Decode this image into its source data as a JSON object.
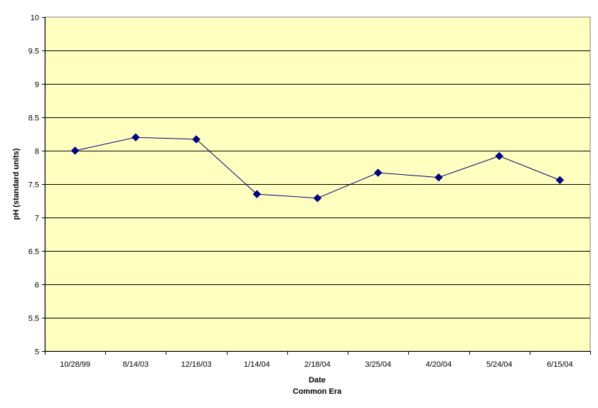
{
  "chart_data": {
    "type": "line",
    "title": "",
    "xlabel": "Date",
    "xlabel_line2": "Common Era",
    "ylabel": "pH (standard units)",
    "categories": [
      "10/28/99",
      "8/14/03",
      "12/16/03",
      "1/14/04",
      "2/18/04",
      "3/25/04",
      "4/20/04",
      "5/24/04",
      "6/15/04"
    ],
    "series": [
      {
        "name": "",
        "values": [
          8.0,
          8.2,
          8.17,
          7.35,
          7.29,
          7.67,
          7.6,
          7.92,
          7.56
        ]
      }
    ],
    "ylim": [
      5,
      10
    ],
    "yticks": [
      "5",
      "5.5",
      "6",
      "6.5",
      "7",
      "7.5",
      "8",
      "8.5",
      "9",
      "9.5",
      "10"
    ],
    "grid": true,
    "legend": "none",
    "colors": {
      "plot_background": "#FFFFC0",
      "line": "#00007A",
      "marker": "#000080",
      "gridline": "#000000"
    }
  }
}
